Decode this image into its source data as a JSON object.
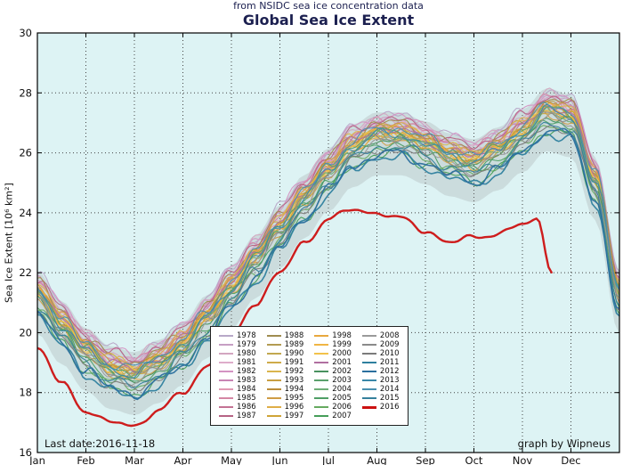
{
  "header": {
    "subtitle": "from NSIDC sea ice concentration data",
    "title": "Global Sea Ice Extent"
  },
  "annotations": {
    "last_date": "Last date:2016-11-18",
    "credit": "graph by Wipneus"
  },
  "chart_data": {
    "type": "line",
    "title": "Global Sea Ice Extent",
    "subtitle": "from NSIDC sea ice concentration data",
    "ylabel": "Sea Ice Extent [10⁶ km²]",
    "xlabel": "",
    "x_months": [
      "Jan",
      "Feb",
      "Mar",
      "Apr",
      "May",
      "Jun",
      "Jul",
      "Aug",
      "Sep",
      "Oct",
      "Nov",
      "Dec"
    ],
    "ylim": [
      16,
      30
    ],
    "yticks": [
      16,
      18,
      20,
      22,
      24,
      26,
      28,
      30
    ],
    "grid": "dotted",
    "plot_bg": "#ddf3f4",
    "envelope": {
      "color": "#8f8f8f",
      "opacity": 0.22,
      "halfwidth": 1.05
    },
    "base_x_step_months": 0.5,
    "base_values": [
      21.0,
      20.0,
      19.1,
      18.5,
      18.3,
      18.7,
      19.3,
      20.2,
      21.2,
      22.2,
      23.2,
      24.2,
      25.1,
      25.9,
      26.3,
      26.3,
      26.0,
      25.6,
      25.4,
      25.8,
      26.4,
      27.1,
      26.9,
      24.8,
      21.0
    ],
    "series": [
      {
        "year": "1978",
        "color": "#b8a8c8",
        "offset": 0.95
      },
      {
        "year": "1979",
        "color": "#c79fc4",
        "offset": 0.75
      },
      {
        "year": "1980",
        "color": "#d3a6c0",
        "offset": 0.85
      },
      {
        "year": "1981",
        "color": "#deadcb",
        "offset": 0.65
      },
      {
        "year": "1982",
        "color": "#d493c3",
        "offset": 0.9
      },
      {
        "year": "1983",
        "color": "#c884b4",
        "offset": 0.6
      },
      {
        "year": "1984",
        "color": "#e09ab4",
        "offset": 0.5
      },
      {
        "year": "1985",
        "color": "#d486a4",
        "offset": 0.7
      },
      {
        "year": "1986",
        "color": "#c47394",
        "offset": 0.55
      },
      {
        "year": "1987",
        "color": "#b66384",
        "offset": 0.8
      },
      {
        "year": "1988",
        "color": "#a08c50",
        "offset": 0.7
      },
      {
        "year": "1989",
        "color": "#b39b52",
        "offset": 0.45
      },
      {
        "year": "1990",
        "color": "#c2a84f",
        "offset": 0.35
      },
      {
        "year": "1991",
        "color": "#ceab49",
        "offset": 0.4
      },
      {
        "year": "1992",
        "color": "#dab54d",
        "offset": 0.6
      },
      {
        "year": "1993",
        "color": "#c89e41",
        "offset": 0.5
      },
      {
        "year": "1994",
        "color": "#ba8c3a",
        "offset": 0.45
      },
      {
        "year": "1995",
        "color": "#cf9c45",
        "offset": 0.15
      },
      {
        "year": "1996",
        "color": "#dfae47",
        "offset": 0.55
      },
      {
        "year": "1997",
        "color": "#cfa437",
        "offset": 0.3
      },
      {
        "year": "1998",
        "color": "#e8a83e",
        "offset": 0.2
      },
      {
        "year": "1999",
        "color": "#f0b544",
        "offset": 0.35
      },
      {
        "year": "2000",
        "color": "#f2c24a",
        "offset": 0.3
      },
      {
        "year": "2001",
        "color": "#b06fa0",
        "offset": 0.45
      },
      {
        "year": "2002",
        "color": "#49915f",
        "offset": 0.1
      },
      {
        "year": "2003",
        "color": "#5aa06c",
        "offset": 0.35
      },
      {
        "year": "2004",
        "color": "#6fae77",
        "offset": 0.25
      },
      {
        "year": "2005",
        "color": "#4f9f66",
        "offset": 0.0
      },
      {
        "year": "2006",
        "color": "#66aa60",
        "offset": -0.15
      },
      {
        "year": "2007",
        "color": "#469e59",
        "offset": -0.35
      },
      {
        "year": "2008",
        "color": "#9a9a9a",
        "offset": 0.05
      },
      {
        "year": "2009",
        "color": "#8a8a8a",
        "offset": 0.2
      },
      {
        "year": "2010",
        "color": "#7b7b7b",
        "offset": -0.2
      },
      {
        "year": "2011",
        "color": "#2e7f9e",
        "offset": -0.45,
        "width": 1.6
      },
      {
        "year": "2012",
        "color": "#2b6f9e",
        "offset": -0.35,
        "width": 1.6
      },
      {
        "year": "2013",
        "color": "#3a87a8",
        "offset": 0.3
      },
      {
        "year": "2014",
        "color": "#4a90b0",
        "offset": 0.5
      },
      {
        "year": "2015",
        "color": "#35809c",
        "offset": -0.1
      },
      {
        "year": "2016",
        "color": "#cc1111",
        "width": 2.4,
        "x": [
          0,
          0.5,
          1,
          1.5,
          2,
          2.5,
          3,
          3.5,
          4,
          4.5,
          5,
          5.5,
          6,
          6.5,
          7,
          7.5,
          8,
          8.5,
          9,
          9.5,
          10,
          10.3,
          10.6
        ],
        "values": [
          19.5,
          18.3,
          17.4,
          17.0,
          16.9,
          17.4,
          18.0,
          18.9,
          19.9,
          21.0,
          22.0,
          23.0,
          23.8,
          24.1,
          24.0,
          23.8,
          23.4,
          23.0,
          23.2,
          23.3,
          23.6,
          23.8,
          22.1
        ]
      }
    ],
    "legend": {
      "columns": 4,
      "position": "lower center"
    }
  }
}
